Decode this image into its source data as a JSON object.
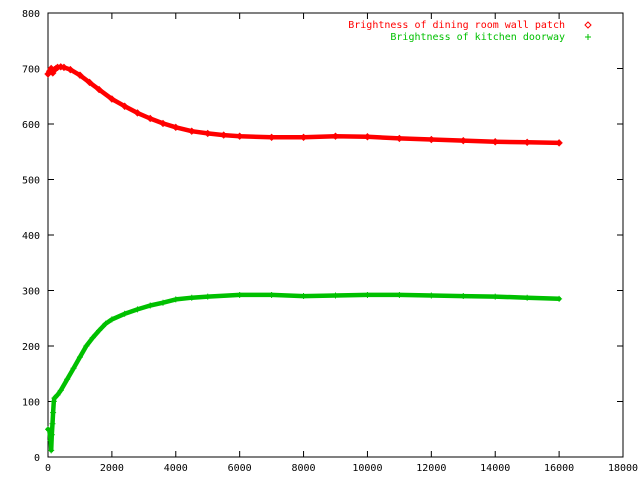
{
  "chart_data": {
    "type": "scatter",
    "title": "",
    "xlabel": "",
    "ylabel": "",
    "xlim": [
      0,
      18000
    ],
    "ylim": [
      0,
      800
    ],
    "x_ticks": [
      0,
      2000,
      4000,
      6000,
      8000,
      10000,
      12000,
      14000,
      16000,
      18000
    ],
    "y_ticks": [
      0,
      100,
      200,
      300,
      400,
      500,
      600,
      700,
      800
    ],
    "grid": false,
    "legend_position": "top-right",
    "series": [
      {
        "name": "Brightness of dining room wall patch",
        "color": "#ff0000",
        "marker": "diamond",
        "x": [
          0,
          50,
          100,
          150,
          200,
          250,
          300,
          400,
          500,
          700,
          1000,
          1300,
          1600,
          2000,
          2400,
          2800,
          3200,
          3600,
          4000,
          4500,
          5000,
          5500,
          6000,
          7000,
          8000,
          9000,
          10000,
          11000,
          12000,
          13000,
          14000,
          15000,
          16000
        ],
        "y": [
          690,
          695,
          700,
          692,
          698,
          700,
          702,
          703,
          702,
          698,
          688,
          675,
          662,
          645,
          632,
          620,
          610,
          601,
          594,
          587,
          583,
          580,
          578,
          576,
          576,
          578,
          577,
          574,
          572,
          570,
          568,
          567,
          566
        ]
      },
      {
        "name": "Brightness of kitchen doorway",
        "color": "#00c000",
        "marker": "plus",
        "x": [
          0,
          40,
          80,
          100,
          120,
          140,
          160,
          180,
          200,
          300,
          400,
          600,
          800,
          1000,
          1200,
          1400,
          1600,
          1800,
          2000,
          2400,
          2800,
          3200,
          3600,
          4000,
          4500,
          5000,
          6000,
          7000,
          8000,
          9000,
          10000,
          11000,
          12000,
          13000,
          14000,
          15000,
          16000
        ],
        "y": [
          50,
          48,
          30,
          12,
          40,
          60,
          80,
          100,
          106,
          112,
          120,
          140,
          160,
          180,
          200,
          215,
          228,
          240,
          248,
          258,
          266,
          273,
          278,
          284,
          287,
          289,
          292,
          292,
          290,
          291,
          292,
          292,
          291,
          290,
          289,
          287,
          285
        ]
      }
    ]
  }
}
